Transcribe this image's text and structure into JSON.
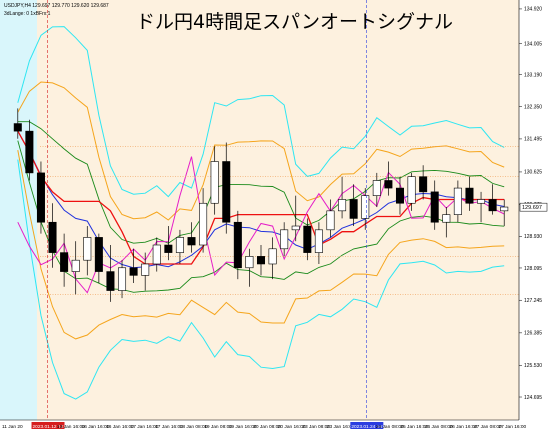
{
  "window": {
    "title": "ドル円4時間足スパンオートシグナル",
    "symbol_line": "USDJPY,H4  129.697 129.770 129.620 129.687",
    "indicator_line": "3dLange: 0 1xBFrx:1"
  },
  "colors": {
    "background": "#fdf1df",
    "axis_bg": "#ffffff",
    "highlight_band": "#d9f6fb",
    "bull_candle": "#ffffff",
    "bear_candle": "#000000",
    "bb_outer": "#2ee6f2",
    "bb_mid": "#f5a51c",
    "bb_inner": "#1a8a1a",
    "span_red": "#ee1111",
    "line_blue": "#2233dd",
    "magenta": "#e51ec8",
    "dotted_orange": "#f0a05a",
    "current_price_bg": "#ffffff",
    "time_marker_red": "#d61f1f",
    "time_marker_blue": "#2b3ee0"
  },
  "chart_data": {
    "type": "candlestick",
    "title": "ドル円4時間足スパンオートシグナル",
    "y_axis": {
      "ticks": [
        "134.920",
        "134.005",
        "133.190",
        "132.350",
        "131.495",
        "130.625",
        "129.775",
        "128.930",
        "128.095",
        "127.245",
        "126.385",
        "125.530",
        "124.695"
      ],
      "range": [
        124.3,
        135.05
      ]
    },
    "current_price": "129.697",
    "x_axis": {
      "labels": [
        "11 Jan 20",
        "2023.01.12 12:00",
        "13 Jan 16:00",
        "16 Jan 16:00",
        "16 Jan 16:00",
        "17 Jan 16:00",
        "17 Jan 16:00",
        "18 Jan 08:00",
        "19 Jan 08:00",
        "19 Jan 16:00",
        "20 Jan 08:00",
        "20 Jan 16:00",
        "23 Jan 08:00",
        "23 Jan 16:00",
        "2023.01.24 16:00",
        "24 Jan 08:00",
        "25 Jan 16:00",
        "26 Jan 08:00",
        "26 Jan 16:00",
        "27 Jan 08:00",
        "27 Jan 16:00"
      ],
      "highlighted": [
        1,
        14
      ]
    },
    "series": [
      {
        "name": "candles",
        "ohlc": [
          [
            131.9,
            132.3,
            131.5,
            131.7
          ],
          [
            131.7,
            132.0,
            130.4,
            130.6
          ],
          [
            130.6,
            130.9,
            129.0,
            129.3
          ],
          [
            129.3,
            129.8,
            128.1,
            128.5
          ],
          [
            128.5,
            129.0,
            127.6,
            128.0
          ],
          [
            128.0,
            128.8,
            127.4,
            128.3
          ],
          [
            128.3,
            129.2,
            127.9,
            128.9
          ],
          [
            128.9,
            129.0,
            127.7,
            128.0
          ],
          [
            128.0,
            128.7,
            127.2,
            127.5
          ],
          [
            127.5,
            128.3,
            127.3,
            128.1
          ],
          [
            128.1,
            128.6,
            127.7,
            127.9
          ],
          [
            127.9,
            128.5,
            127.5,
            128.2
          ],
          [
            128.2,
            128.9,
            128.0,
            128.7
          ],
          [
            128.7,
            129.2,
            128.3,
            128.5
          ],
          [
            128.5,
            129.1,
            128.2,
            128.9
          ],
          [
            128.9,
            129.3,
            128.5,
            128.7
          ],
          [
            128.7,
            130.2,
            128.5,
            129.8
          ],
          [
            129.8,
            131.3,
            129.5,
            130.9
          ],
          [
            130.9,
            131.4,
            129.0,
            129.3
          ],
          [
            129.3,
            129.6,
            127.8,
            128.1
          ],
          [
            128.1,
            128.6,
            127.6,
            128.4
          ],
          [
            128.4,
            128.7,
            127.9,
            128.2
          ],
          [
            128.2,
            128.9,
            127.8,
            128.6
          ],
          [
            128.6,
            129.3,
            128.4,
            129.1
          ],
          [
            129.1,
            130.0,
            128.8,
            129.2
          ],
          [
            129.2,
            129.4,
            128.3,
            128.5
          ],
          [
            128.5,
            129.3,
            128.2,
            129.1
          ],
          [
            129.1,
            129.9,
            128.9,
            129.6
          ],
          [
            129.6,
            130.5,
            129.4,
            129.9
          ],
          [
            129.9,
            130.3,
            129.2,
            129.4
          ],
          [
            129.4,
            130.2,
            129.1,
            130.0
          ],
          [
            130.0,
            130.6,
            129.7,
            130.4
          ],
          [
            130.4,
            130.9,
            130.0,
            130.2
          ],
          [
            130.2,
            130.5,
            129.5,
            129.8
          ],
          [
            129.8,
            130.6,
            129.6,
            130.5
          ],
          [
            130.5,
            130.8,
            129.9,
            130.1
          ],
          [
            130.1,
            130.4,
            129.1,
            129.3
          ],
          [
            129.3,
            129.7,
            128.9,
            129.5
          ],
          [
            129.5,
            130.4,
            129.3,
            130.2
          ],
          [
            130.2,
            130.5,
            129.6,
            129.8
          ],
          [
            129.8,
            130.1,
            129.3,
            129.9
          ],
          [
            129.9,
            130.3,
            129.5,
            129.6
          ],
          [
            129.6,
            129.9,
            129.2,
            129.7
          ]
        ]
      }
    ]
  }
}
